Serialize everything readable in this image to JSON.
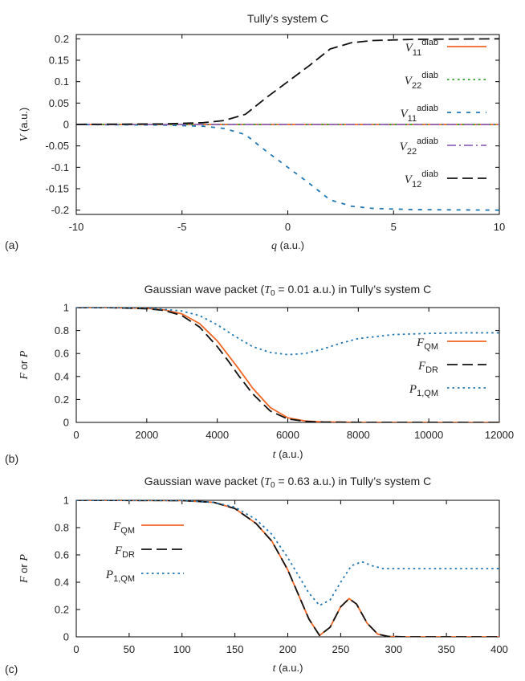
{
  "chart_data": [
    {
      "panel_label": "(a)",
      "type": "line",
      "title": "Tully’s system C",
      "xlabel": {
        "var": "q",
        "unit": "(a.u.)"
      },
      "ylabel": {
        "var": "V",
        "unit": "(a.u.)"
      },
      "xlim": [
        -10,
        10
      ],
      "ylim": [
        -0.21,
        0.21
      ],
      "xticks": [
        -10,
        -5,
        0,
        5,
        10
      ],
      "yticks": [
        0.2,
        0.15,
        0.1,
        0.05,
        0,
        -0.05,
        -0.1,
        -0.15,
        -0.2
      ],
      "ytick_labels": [
        "0.2",
        "0.15",
        "0.1",
        "0.05",
        "0",
        "-0.05",
        "-0.1",
        "-0.15",
        "-0.2"
      ],
      "legend_position": "right",
      "series": [
        {
          "label_main": "V",
          "label_sub": "11",
          "label_sup": "diab",
          "color": "#f26522",
          "dash": "solid",
          "x": [
            -10,
            -5,
            0,
            5,
            10
          ],
          "y": [
            0,
            0,
            0,
            0,
            0
          ]
        },
        {
          "label_main": "V",
          "label_sub": "22",
          "label_sup": "diab",
          "color": "#2ca02c",
          "dash": "dotted",
          "x": [
            -10,
            -5,
            0,
            5,
            10
          ],
          "y": [
            0,
            0,
            0,
            0,
            0
          ]
        },
        {
          "label_main": "V",
          "label_sub": "11",
          "label_sup": "adiab",
          "color": "#1f77b4",
          "dash": "dashed-short",
          "x": [
            -10,
            -6,
            -4,
            -3,
            -2,
            -1,
            0,
            1,
            2,
            3,
            4,
            6,
            10
          ],
          "y": [
            -0.0002,
            -0.0012,
            -0.0041,
            -0.0093,
            -0.0238,
            -0.0632,
            -0.1,
            -0.1368,
            -0.1762,
            -0.1907,
            -0.1959,
            -0.1988,
            -0.2
          ]
        },
        {
          "label_main": "V",
          "label_sub": "22",
          "label_sup": "adiab",
          "color": "#9467bd",
          "dash": "dashdot",
          "x": [
            -10,
            -5,
            0,
            5,
            10
          ],
          "y": [
            0,
            0,
            0,
            0,
            0
          ]
        },
        {
          "label_main": "V",
          "label_sub": "12",
          "label_sup": "diab",
          "color": "#111111",
          "dash": "dashed-long",
          "x": [
            -10,
            -6,
            -4,
            -3,
            -2,
            -1,
            0,
            1,
            2,
            3,
            4,
            6,
            10
          ],
          "y": [
            0.0002,
            0.0012,
            0.0041,
            0.0093,
            0.0238,
            0.0632,
            0.1,
            0.1368,
            0.1762,
            0.1907,
            0.1959,
            0.1988,
            0.2
          ]
        }
      ]
    },
    {
      "panel_label": "(b)",
      "type": "line",
      "title": {
        "pre": "Gaussian wave packet (",
        "var": "T",
        "sub": "0",
        "post": " = 0.01 a.u.) in Tully’s system C"
      },
      "xlabel": {
        "var": "t",
        "unit": "(a.u.)"
      },
      "ylabel": {
        "var1": "F",
        "mid": "or",
        "var2": "P"
      },
      "xlim": [
        0,
        12000
      ],
      "ylim": [
        0,
        1
      ],
      "xticks": [
        0,
        2000,
        4000,
        6000,
        8000,
        10000,
        12000
      ],
      "yticks": [
        0,
        0.2,
        0.4,
        0.6,
        0.8,
        1
      ],
      "ytick_labels": [
        "0",
        "0.2",
        "0.4",
        "0.6",
        "0.8",
        "1"
      ],
      "legend_position": "right",
      "series": [
        {
          "label_main": "F",
          "label_sub": "QM",
          "color": "#f26522",
          "dash": "solid",
          "x": [
            0,
            1000,
            2000,
            2500,
            3000,
            3500,
            4000,
            4300,
            4600,
            5000,
            5500,
            6000,
            6500,
            7000,
            8000,
            12000
          ],
          "y": [
            1,
            0.999,
            0.993,
            0.98,
            0.945,
            0.86,
            0.71,
            0.59,
            0.47,
            0.3,
            0.13,
            0.04,
            0.012,
            0.004,
            0.001,
            0.0
          ]
        },
        {
          "label_main": "F",
          "label_sub": "DR",
          "color": "#111111",
          "dash": "dashed-long",
          "x": [
            0,
            1000,
            2000,
            2500,
            3000,
            3500,
            4000,
            4300,
            4600,
            5000,
            5500,
            6000,
            6500,
            7000,
            8000,
            12000
          ],
          "y": [
            1,
            0.999,
            0.99,
            0.975,
            0.93,
            0.83,
            0.66,
            0.54,
            0.41,
            0.25,
            0.1,
            0.03,
            0.009,
            0.003,
            0.001,
            0.0
          ]
        },
        {
          "label_main": "P",
          "label_sub": "1,QM",
          "color": "#1f77b4",
          "dash": "dotted",
          "x": [
            0,
            2000,
            3000,
            3500,
            4000,
            4500,
            5000,
            5500,
            6000,
            6500,
            7000,
            7500,
            8000,
            9000,
            10000,
            11000,
            12000
          ],
          "y": [
            1,
            0.998,
            0.97,
            0.93,
            0.85,
            0.75,
            0.66,
            0.61,
            0.59,
            0.6,
            0.64,
            0.69,
            0.73,
            0.765,
            0.775,
            0.78,
            0.78
          ]
        }
      ]
    },
    {
      "panel_label": "(c)",
      "type": "line",
      "title": {
        "pre": "Gaussian wave packet (",
        "var": "T",
        "sub": "0",
        "post": " = 0.63 a.u.) in Tully’s system C"
      },
      "xlabel": {
        "var": "t",
        "unit": "(a.u.)"
      },
      "ylabel": {
        "var1": "F",
        "mid": "or",
        "var2": "P"
      },
      "xlim": [
        0,
        400
      ],
      "ylim": [
        0,
        1
      ],
      "xticks": [
        0,
        50,
        100,
        150,
        200,
        250,
        300,
        350,
        400
      ],
      "yticks": [
        0,
        0.2,
        0.4,
        0.6,
        0.8,
        1
      ],
      "ytick_labels": [
        "0",
        "0.2",
        "0.4",
        "0.6",
        "0.8",
        "1"
      ],
      "legend_position": "left",
      "series": [
        {
          "label_main": "F",
          "label_sub": "QM",
          "color": "#f26522",
          "dash": "solid",
          "x": [
            0,
            100,
            130,
            150,
            170,
            185,
            200,
            210,
            220,
            230,
            240,
            250,
            258,
            265,
            275,
            285,
            295,
            310,
            400
          ],
          "y": [
            1,
            0.998,
            0.985,
            0.94,
            0.83,
            0.7,
            0.49,
            0.31,
            0.13,
            0.01,
            0.07,
            0.22,
            0.28,
            0.24,
            0.1,
            0.02,
            0.003,
            0.0,
            0.0
          ]
        },
        {
          "label_main": "F",
          "label_sub": "DR",
          "color": "#111111",
          "dash": "dashed-long",
          "x": [
            0,
            100,
            130,
            150,
            170,
            185,
            200,
            210,
            220,
            230,
            240,
            250,
            258,
            265,
            275,
            285,
            295,
            310,
            400
          ],
          "y": [
            1,
            0.998,
            0.985,
            0.94,
            0.83,
            0.7,
            0.49,
            0.31,
            0.13,
            0.01,
            0.07,
            0.22,
            0.28,
            0.24,
            0.1,
            0.02,
            0.003,
            0.0,
            0.0
          ]
        },
        {
          "label_main": "P",
          "label_sub": "1,QM",
          "color": "#1f77b4",
          "dash": "dotted",
          "x": [
            0,
            100,
            130,
            150,
            170,
            185,
            200,
            210,
            220,
            230,
            240,
            250,
            260,
            270,
            280,
            290,
            310,
            400
          ],
          "y": [
            1,
            0.998,
            0.985,
            0.95,
            0.86,
            0.75,
            0.58,
            0.45,
            0.32,
            0.23,
            0.27,
            0.4,
            0.52,
            0.55,
            0.52,
            0.5,
            0.5,
            0.5
          ]
        }
      ]
    }
  ]
}
